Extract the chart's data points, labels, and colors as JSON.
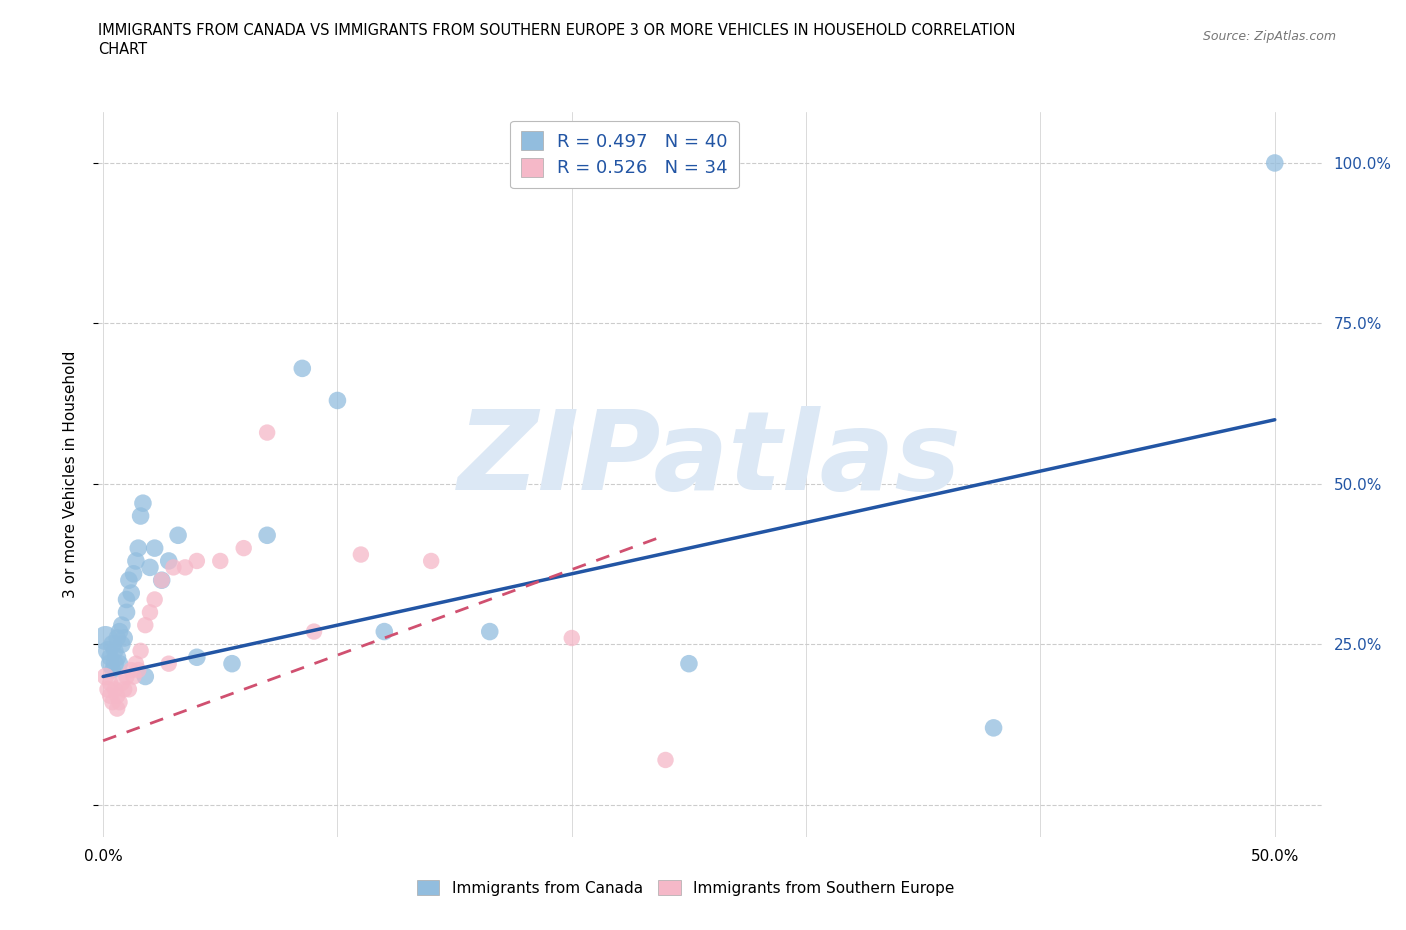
{
  "title_line1": "IMMIGRANTS FROM CANADA VS IMMIGRANTS FROM SOUTHERN EUROPE 3 OR MORE VEHICLES IN HOUSEHOLD CORRELATION",
  "title_line2": "CHART",
  "source": "Source: ZipAtlas.com",
  "ylabel": "3 or more Vehicles in Household",
  "xlim": [
    -0.002,
    0.52
  ],
  "ylim": [
    -0.05,
    1.08
  ],
  "xticks": [
    0.0,
    0.1,
    0.2,
    0.3,
    0.4,
    0.5
  ],
  "yticks": [
    0.0,
    0.25,
    0.5,
    0.75,
    1.0
  ],
  "yticklabels_right": [
    "",
    "25.0%",
    "50.0%",
    "75.0%",
    "100.0%"
  ],
  "canada_R": 0.497,
  "canada_N": 40,
  "southern_europe_R": 0.526,
  "southern_europe_N": 34,
  "legend_label_canada": "Immigrants from Canada",
  "legend_label_southern": "Immigrants from Southern Europe",
  "blue_color": "#92bdde",
  "pink_color": "#f5b8c8",
  "blue_line_color": "#2255a4",
  "pink_line_color": "#d05070",
  "watermark": "ZIPatlas",
  "watermark_color": "#dce8f5",
  "canada_x": [
    0.001,
    0.002,
    0.003,
    0.003,
    0.004,
    0.004,
    0.005,
    0.005,
    0.006,
    0.006,
    0.007,
    0.007,
    0.008,
    0.008,
    0.009,
    0.01,
    0.01,
    0.011,
    0.012,
    0.013,
    0.014,
    0.015,
    0.016,
    0.017,
    0.018,
    0.02,
    0.022,
    0.025,
    0.028,
    0.032,
    0.04,
    0.055,
    0.07,
    0.085,
    0.1,
    0.12,
    0.165,
    0.25,
    0.38,
    0.5
  ],
  "canada_y": [
    0.26,
    0.24,
    0.22,
    0.23,
    0.21,
    0.25,
    0.22,
    0.24,
    0.23,
    0.26,
    0.22,
    0.27,
    0.25,
    0.28,
    0.26,
    0.3,
    0.32,
    0.35,
    0.33,
    0.36,
    0.38,
    0.4,
    0.45,
    0.47,
    0.2,
    0.37,
    0.4,
    0.35,
    0.38,
    0.42,
    0.23,
    0.22,
    0.42,
    0.68,
    0.63,
    0.27,
    0.27,
    0.22,
    0.12,
    1.0
  ],
  "canada_sizes": [
    300,
    200,
    180,
    160,
    150,
    180,
    170,
    160,
    170,
    160,
    160,
    160,
    160,
    160,
    160,
    160,
    160,
    160,
    160,
    160,
    160,
    160,
    160,
    160,
    160,
    160,
    160,
    160,
    160,
    160,
    160,
    160,
    160,
    160,
    160,
    160,
    160,
    160,
    160,
    160
  ],
  "southern_x": [
    0.001,
    0.002,
    0.003,
    0.003,
    0.004,
    0.005,
    0.006,
    0.006,
    0.007,
    0.008,
    0.009,
    0.01,
    0.011,
    0.012,
    0.013,
    0.014,
    0.015,
    0.016,
    0.018,
    0.02,
    0.022,
    0.025,
    0.028,
    0.03,
    0.035,
    0.04,
    0.05,
    0.06,
    0.07,
    0.09,
    0.11,
    0.14,
    0.2,
    0.24
  ],
  "southern_y": [
    0.2,
    0.18,
    0.17,
    0.19,
    0.16,
    0.18,
    0.15,
    0.17,
    0.16,
    0.19,
    0.18,
    0.2,
    0.18,
    0.21,
    0.2,
    0.22,
    0.21,
    0.24,
    0.28,
    0.3,
    0.32,
    0.35,
    0.22,
    0.37,
    0.37,
    0.38,
    0.38,
    0.4,
    0.58,
    0.27,
    0.39,
    0.38,
    0.26,
    0.07
  ],
  "southern_sizes": [
    160,
    150,
    140,
    140,
    140,
    140,
    140,
    140,
    140,
    140,
    140,
    140,
    140,
    140,
    140,
    140,
    140,
    140,
    140,
    140,
    140,
    140,
    140,
    140,
    140,
    140,
    140,
    140,
    140,
    140,
    140,
    140,
    140,
    140
  ],
  "blue_line_x0": 0.0,
  "blue_line_y0": 0.2,
  "blue_line_x1": 0.5,
  "blue_line_y1": 0.6,
  "pink_line_x0": 0.0,
  "pink_line_y0": 0.1,
  "pink_line_x1": 0.24,
  "pink_line_y1": 0.42
}
